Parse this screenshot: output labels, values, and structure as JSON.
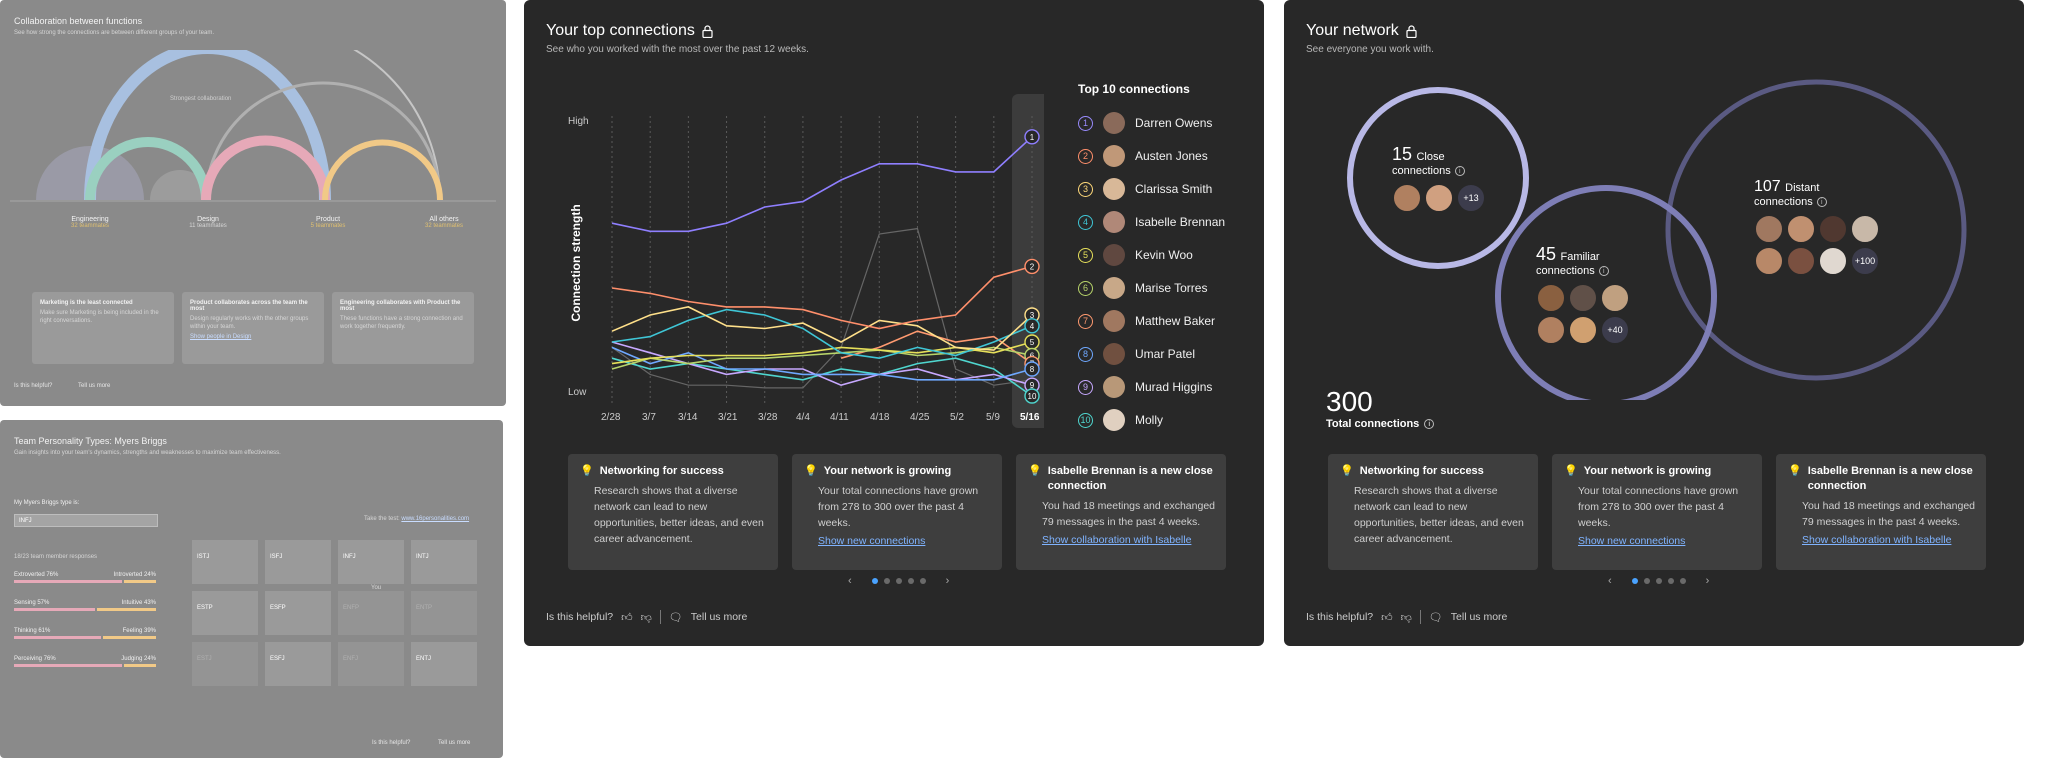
{
  "collab": {
    "title": "Collaboration between functions",
    "subtitle": "See how strong the connections are between different groups of your team.",
    "arc_label": "Strongest collaboration",
    "groups": [
      {
        "name": "Engineering",
        "count": "32 teammates"
      },
      {
        "name": "Design",
        "count": "11 teammates"
      },
      {
        "name": "Product",
        "count": "5 teammates"
      },
      {
        "name": "All others",
        "count": "32 teammates"
      }
    ],
    "insights": [
      {
        "title": "Marketing is the least connected",
        "body": "Make sure Marketing is being included in the right conversations.",
        "link": ""
      },
      {
        "title": "Product collaborates across the team the most",
        "body": "Design regularly works with the other groups within your team.",
        "link": "Show people in Design"
      },
      {
        "title": "Engineering collaborates with Product the most",
        "body": "These functions have a strong connection and work together frequently.",
        "link": ""
      }
    ],
    "helpful": "Is this helpful?",
    "tell": "Tell us more"
  },
  "myers": {
    "title": "Team Personality Types: Myers Briggs",
    "subtitle": "Gain insights into your team's dynamics, strengths and weaknesses to maximize team effectiveness.",
    "my_type_label": "My Myers Briggs type is:",
    "my_type_value": "INFJ",
    "test_text": "Take the test: ",
    "test_link": "www.16personalities.com",
    "responses": "18/23 team member responses",
    "traits": [
      {
        "left": "Extroverted 76%",
        "right": "Introverted 24%"
      },
      {
        "left": "Sensing 57%",
        "right": "Intuitive 43%"
      },
      {
        "left": "Thinking 61%",
        "right": "Feeling 39%"
      },
      {
        "left": "Perceiving 76%",
        "right": "Judging 24%"
      }
    ],
    "types": [
      "ISTJ",
      "ISFJ",
      "INFJ",
      "INTJ",
      "ESTP",
      "ESFP",
      "ENFP",
      "ENTP",
      "ESTJ",
      "ESFJ",
      "ENFJ",
      "ENTJ"
    ],
    "you_label": "You",
    "helpful": "Is this helpful?",
    "tell": "Tell us more"
  },
  "top": {
    "title": "Your top connections",
    "subtitle": "See who you worked with the most over the past 12 weeks.",
    "list_title": "Top 10 connections",
    "people": [
      {
        "n": "1",
        "name": "Darren Owens",
        "color": "#9a8cff"
      },
      {
        "n": "2",
        "name": "Austen Jones",
        "color": "#ff8f6b"
      },
      {
        "n": "3",
        "name": "Clarissa Smith",
        "color": "#ffd97a"
      },
      {
        "n": "4",
        "name": "Isabelle Brennan",
        "color": "#3fc6d6"
      },
      {
        "n": "5",
        "name": "Kevin Woo",
        "color": "#e6e05a"
      },
      {
        "n": "6",
        "name": "Marise Torres",
        "color": "#b8d46a"
      },
      {
        "n": "7",
        "name": "Matthew Baker",
        "color": "#ff9a70"
      },
      {
        "n": "8",
        "name": "Umar Patel",
        "color": "#6fa8ff"
      },
      {
        "n": "9",
        "name": "Murad Higgins",
        "color": "#c7a8ff"
      },
      {
        "n": "10",
        "name": "Molly",
        "color": "#4fd6cf"
      }
    ],
    "insights": [
      {
        "title": "Networking for success",
        "body": "Research shows that a diverse network can lead to new opportunities, better ideas, and even career advancement.",
        "link": ""
      },
      {
        "title": "Your network is growing",
        "body": "Your total connections have grown from 278 to 300 over the past 4 weeks.",
        "link": "Show new connections"
      },
      {
        "title": "Isabelle Brennan is a new close connection",
        "body": "You had 18 meetings and exchanged 79 messages in the past 4 weeks.",
        "link": "Show collaboration with Isabelle"
      }
    ],
    "helpful": "Is this helpful?",
    "tell": "Tell us more",
    "prev": "‹",
    "next": "›"
  },
  "chart_data": {
    "type": "line",
    "title": "",
    "xlabel": "",
    "ylabel": "Connection strength",
    "y_ticks": [
      "High",
      "Low"
    ],
    "categories": [
      "2/28",
      "3/7",
      "3/14",
      "3/21",
      "3/28",
      "4/4",
      "4/11",
      "4/18",
      "4/25",
      "5/2",
      "5/9",
      "5/16"
    ],
    "ylim": [
      0,
      100
    ],
    "series": [
      {
        "name": "Darren Owens",
        "color": "#8f7fff",
        "values": [
          64,
          61,
          61,
          64,
          70,
          72,
          80,
          86,
          86,
          83,
          83,
          96
        ]
      },
      {
        "name": "Austen Jones",
        "color": "#ff8f6b",
        "values": [
          40,
          38,
          35,
          33,
          33,
          32,
          28,
          25,
          28,
          30,
          44,
          48
        ]
      },
      {
        "name": "Clarissa Smith",
        "color": "#ffe08a",
        "values": [
          24,
          30,
          33,
          26,
          25,
          27,
          20,
          28,
          26,
          18,
          17,
          30
        ]
      },
      {
        "name": "Isabelle Brennan",
        "color": "#3fc6d6",
        "values": [
          20,
          22,
          28,
          32,
          30,
          25,
          16,
          14,
          18,
          15,
          20,
          26
        ]
      },
      {
        "name": "Kevin Woo",
        "color": "#e6e05a",
        "values": [
          12,
          14,
          15,
          15,
          15,
          16,
          18,
          17,
          16,
          18,
          16,
          20
        ]
      },
      {
        "name": "Marise Torres",
        "color": "#b8d46a",
        "values": [
          10,
          14,
          12,
          14,
          14,
          15,
          16,
          17,
          15,
          16,
          18,
          15
        ]
      },
      {
        "name": "Matthew Baker",
        "color": "#ff9a70",
        "values": [
          null,
          null,
          null,
          null,
          null,
          null,
          14,
          18,
          24,
          20,
          22,
          12
        ]
      },
      {
        "name": "Umar Patel",
        "color": "#6fa8ff",
        "values": [
          18,
          12,
          16,
          10,
          10,
          8,
          8,
          8,
          6,
          6,
          6,
          10
        ]
      },
      {
        "name": "Murad Higgins",
        "color": "#c7a8ff",
        "values": [
          20,
          16,
          12,
          8,
          10,
          10,
          4,
          8,
          10,
          6,
          8,
          4
        ]
      },
      {
        "name": "Molly",
        "color": "#4fd6cf",
        "values": [
          14,
          10,
          12,
          10,
          8,
          6,
          10,
          8,
          12,
          14,
          10,
          0
        ]
      },
      {
        "name": "",
        "color": "#666666",
        "values": [
          18,
          8,
          4,
          4,
          3,
          3,
          18,
          60,
          62,
          10,
          4,
          6
        ]
      }
    ]
  },
  "network": {
    "title": "Your network",
    "subtitle": "See everyone you work with.",
    "close": {
      "num": "15",
      "label": "Close",
      "label2": "connections",
      "more": "+13"
    },
    "familiar": {
      "num": "45",
      "label": "Familiar",
      "label2": "connections",
      "more": "+40"
    },
    "distant": {
      "num": "107",
      "label": "Distant",
      "label2": "connections",
      "more": "+100"
    },
    "total_num": "300",
    "total_label": "Total connections",
    "insights": [
      {
        "title": "Networking for success",
        "body": "Research shows that a diverse network can lead to new opportunities, better ideas, and even career advancement.",
        "link": ""
      },
      {
        "title": "Your network is growing",
        "body": "Your total connections have grown from 278 to 300 over the past 4 weeks.",
        "link": "Show new connections"
      },
      {
        "title": "Isabelle Brennan is a new close connection",
        "body": "You had 18 meetings and exchanged 79 messages in the past 4 weeks.",
        "link": "Show collaboration with Isabelle"
      }
    ],
    "helpful": "Is this helpful?",
    "tell": "Tell us more",
    "prev": "‹",
    "next": "›"
  }
}
